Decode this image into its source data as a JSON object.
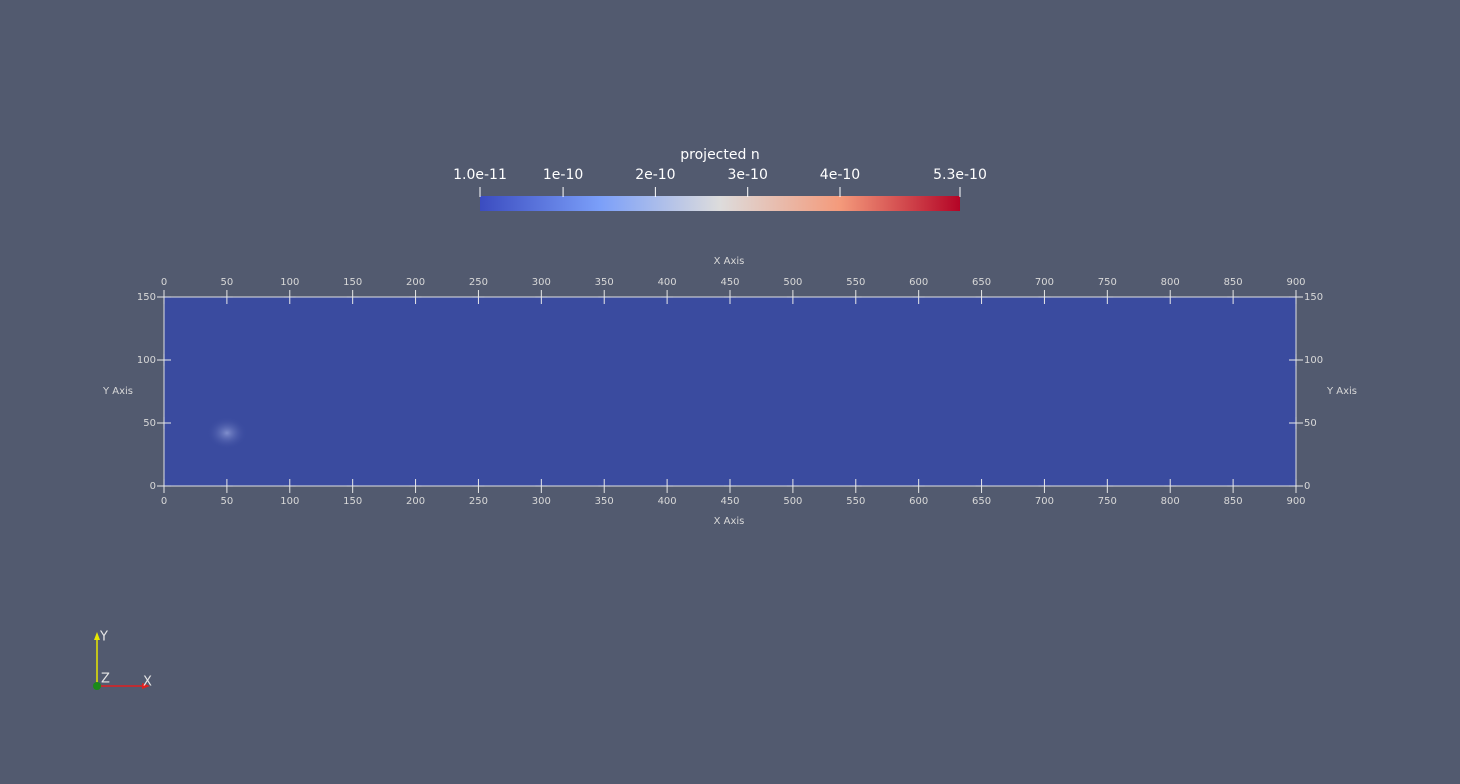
{
  "colorbar": {
    "title": "projected n",
    "range": [
      1e-11,
      5.3e-10
    ],
    "ticks": [
      {
        "value": 1e-11,
        "label": "1.0e-11"
      },
      {
        "value": 1e-10,
        "label": "1e-10"
      },
      {
        "value": 2e-10,
        "label": "2e-10"
      },
      {
        "value": 3e-10,
        "label": "3e-10"
      },
      {
        "value": 4e-10,
        "label": "4e-10"
      },
      {
        "value": 5.3e-10,
        "label": "5.3e-10"
      }
    ]
  },
  "axes": {
    "x_label": "X Axis",
    "y_label": "Y Axis",
    "xlim": [
      0,
      900
    ],
    "ylim": [
      0,
      150
    ],
    "xticks": [
      0,
      50,
      100,
      150,
      200,
      250,
      300,
      350,
      400,
      450,
      500,
      550,
      600,
      650,
      700,
      750,
      800,
      850,
      900
    ],
    "yticks": [
      0,
      50,
      100,
      150
    ]
  },
  "orientation": {
    "x": "X",
    "y": "Y",
    "z": "Z"
  }
}
